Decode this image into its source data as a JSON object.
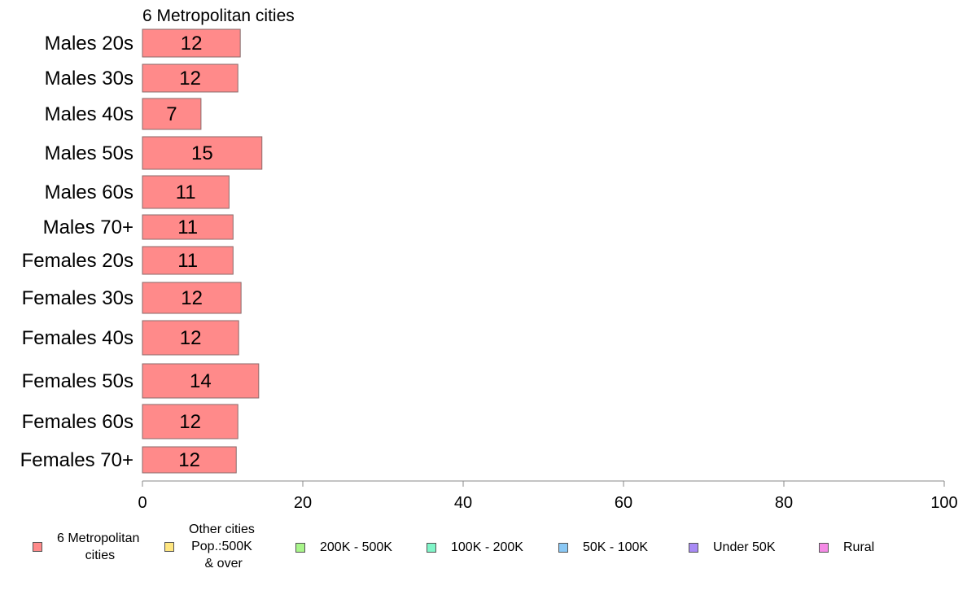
{
  "chart_data": {
    "type": "bar",
    "orientation": "horizontal",
    "title": "6 Metropolitan cities",
    "categories": [
      "Males 20s",
      "Males 30s",
      "Males 40s",
      "Males 50s",
      "Males 60s",
      "Males 70+",
      "Females 20s",
      "Females 30s",
      "Females 40s",
      "Females 50s",
      "Females 60s",
      "Females 70+"
    ],
    "values": [
      12.2,
      11.9,
      7.3,
      14.9,
      10.8,
      11.3,
      11.3,
      12.3,
      12.0,
      14.5,
      11.9,
      11.7
    ],
    "value_labels": [
      "12",
      "12",
      "7",
      "15",
      "11",
      "11",
      "11",
      "12",
      "12",
      "14",
      "12",
      "12"
    ],
    "xlim": [
      0,
      100
    ],
    "xticks": [
      "0",
      "20",
      "40",
      "60",
      "80",
      "100"
    ],
    "bar_color": "#ff8a8a",
    "grid": false,
    "legend_position": "bottom",
    "legend": [
      {
        "label": "6 Metropolitan\n cities",
        "color": "#ff8a8a"
      },
      {
        "label": "Other cities\nPop.:500K\n & over",
        "color": "#ffe680"
      },
      {
        "label": "200K - 500K",
        "color": "#a8f58a"
      },
      {
        "label": "100K - 200K",
        "color": "#80f5c8"
      },
      {
        "label": "50K - 100K",
        "color": "#8ac8f5"
      },
      {
        "label": "Under 50K",
        "color": "#a88af5"
      },
      {
        "label": "Rural",
        "color": "#f58ae6"
      }
    ]
  }
}
